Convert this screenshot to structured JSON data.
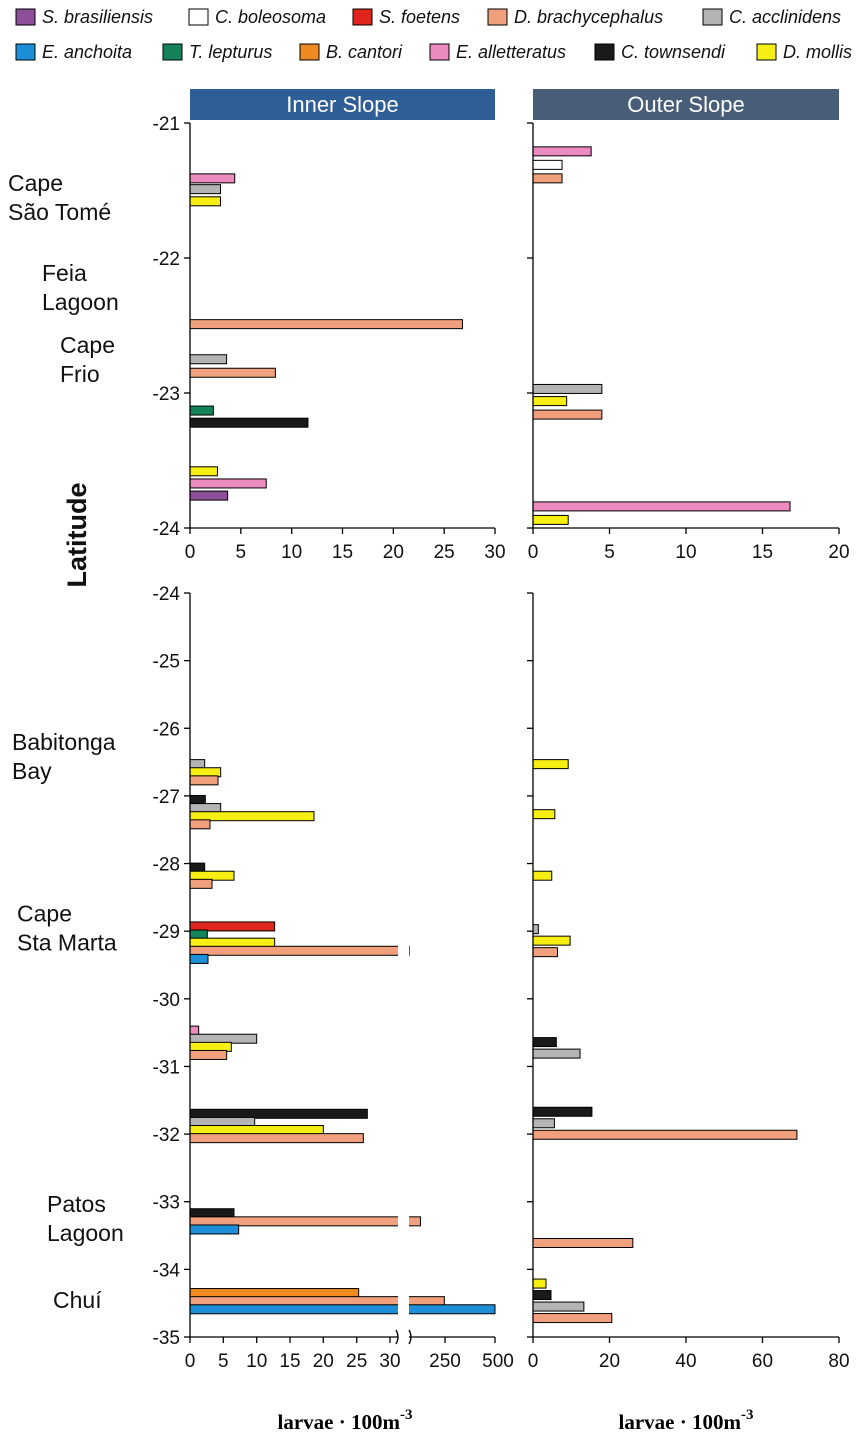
{
  "chart_data": {
    "type": "bar",
    "orientation": "horizontal",
    "ylabel": "Latitude",
    "species": [
      {
        "key": "sbra",
        "name": "S. brasiliensis",
        "color": "#8c4f98"
      },
      {
        "key": "cbol",
        "name": "C. boleosoma",
        "color": "#ffffff"
      },
      {
        "key": "sfoe",
        "name": "S. foetens",
        "color": "#e0261c"
      },
      {
        "key": "dbra",
        "name": "D. brachycephalus",
        "color": "#f0a07c"
      },
      {
        "key": "cacc",
        "name": "C. acclinidens",
        "color": "#b4b4b4"
      },
      {
        "key": "eanc",
        "name": "E. anchoita",
        "color": "#1d8fd8"
      },
      {
        "key": "tlep",
        "name": "T. lepturus",
        "color": "#15835a"
      },
      {
        "key": "bcan",
        "name": "B. cantori",
        "color": "#ee8a1f"
      },
      {
        "key": "eall",
        "name": "E. alletteratus",
        "color": "#ec8bbd"
      },
      {
        "key": "ctow",
        "name": "C. townsendi",
        "color": "#1a1a1a"
      },
      {
        "key": "dmol",
        "name": "D. mollis",
        "color": "#f7ee14"
      }
    ],
    "panels": [
      {
        "id": "top-inner",
        "title": "Inner Slope",
        "ylim": [
          -24,
          -21
        ],
        "yticks": [
          -21,
          -22,
          -23,
          -24
        ],
        "ytick_labels": [
          "-21",
          "-22",
          "-23",
          "-24"
        ],
        "xlim": [
          0,
          30
        ],
        "xticks": [
          0,
          5,
          10,
          15,
          20,
          25,
          30
        ],
        "xtick_labels": [
          "0",
          "5",
          "10",
          "15",
          "20",
          "25",
          "30"
        ],
        "bars": [
          {
            "species": "eall",
            "lat": -21.41,
            "value": 4.4
          },
          {
            "species": "cacc",
            "lat": -21.49,
            "value": 3.0
          },
          {
            "species": "dmol",
            "lat": -21.58,
            "value": 3.0
          },
          {
            "species": "dbra",
            "lat": -22.49,
            "value": 26.8
          },
          {
            "species": "cacc",
            "lat": -22.75,
            "value": 3.6
          },
          {
            "species": "dbra",
            "lat": -22.85,
            "value": 8.4
          },
          {
            "species": "tlep",
            "lat": -23.13,
            "value": 2.3
          },
          {
            "species": "ctow",
            "lat": -23.22,
            "value": 11.6
          },
          {
            "species": "dmol",
            "lat": -23.58,
            "value": 2.7
          },
          {
            "species": "eall",
            "lat": -23.67,
            "value": 7.5
          },
          {
            "species": "sbra",
            "lat": -23.76,
            "value": 3.7
          }
        ]
      },
      {
        "id": "top-outer",
        "title": "Outer Slope",
        "ylim": [
          -24,
          -21
        ],
        "yticks": [
          -21,
          -22,
          -23,
          -24
        ],
        "ytick_labels": [],
        "xlim": [
          0,
          20
        ],
        "xticks": [
          0,
          5,
          10,
          15,
          20
        ],
        "xtick_labels": [
          "0",
          "5",
          "10",
          "15",
          "20"
        ],
        "bars": [
          {
            "species": "eall",
            "lat": -21.21,
            "value": 3.8
          },
          {
            "species": "cbol",
            "lat": -21.31,
            "value": 1.9
          },
          {
            "species": "dbra",
            "lat": -21.41,
            "value": 1.9
          },
          {
            "species": "cacc",
            "lat": -22.97,
            "value": 4.5
          },
          {
            "species": "dmol",
            "lat": -23.06,
            "value": 2.2
          },
          {
            "species": "dbra",
            "lat": -23.16,
            "value": 4.5
          },
          {
            "species": "eall",
            "lat": -23.84,
            "value": 16.8
          },
          {
            "species": "dmol",
            "lat": -23.94,
            "value": 2.3
          }
        ]
      },
      {
        "id": "bottom-inner",
        "title": "",
        "ylim": [
          -35,
          -24
        ],
        "yticks": [
          -24,
          -25,
          -26,
          -27,
          -28,
          -29,
          -30,
          -31,
          -32,
          -33,
          -34,
          -35
        ],
        "ytick_labels": [
          "-24",
          "-25",
          "-26",
          "-27",
          "-28",
          "-29",
          "-30",
          "-31",
          "-32",
          "-33",
          "-34",
          "-35"
        ],
        "xlim": [
          0,
          500
        ],
        "xaxis_break": true,
        "xtick_labels": [
          "0",
          "5",
          "10",
          "15",
          "20",
          "25",
          "30",
          "250",
          "500"
        ],
        "bars": [
          {
            "species": "cacc",
            "lat": -26.53,
            "value": 2.2
          },
          {
            "species": "dmol",
            "lat": -26.65,
            "value": 4.6
          },
          {
            "species": "dbra",
            "lat": -26.77,
            "value": 4.2
          },
          {
            "species": "ctow",
            "lat": -27.06,
            "value": 2.3
          },
          {
            "species": "cacc",
            "lat": -27.18,
            "value": 4.6
          },
          {
            "species": "dmol",
            "lat": -27.3,
            "value": 18.6
          },
          {
            "species": "dbra",
            "lat": -27.42,
            "value": 3.0
          },
          {
            "species": "ctow",
            "lat": -28.06,
            "value": 2.2
          },
          {
            "species": "dmol",
            "lat": -28.18,
            "value": 6.6
          },
          {
            "species": "dbra",
            "lat": -28.3,
            "value": 3.3
          },
          {
            "species": "sfoe",
            "lat": -28.93,
            "value": 12.7
          },
          {
            "species": "tlep",
            "lat": -29.05,
            "value": 2.6
          },
          {
            "species": "dmol",
            "lat": -29.17,
            "value": 12.7
          },
          {
            "species": "dbra",
            "lat": -29.29,
            "value": 30.8
          },
          {
            "species": "eanc",
            "lat": -29.41,
            "value": 2.7
          },
          {
            "species": "eall",
            "lat": -30.47,
            "value": 1.3
          },
          {
            "species": "cacc",
            "lat": -30.59,
            "value": 10.0
          },
          {
            "species": "dmol",
            "lat": -30.71,
            "value": 6.2
          },
          {
            "species": "dbra",
            "lat": -30.83,
            "value": 5.5
          },
          {
            "species": "ctow",
            "lat": -31.7,
            "value": 26.6
          },
          {
            "species": "cacc",
            "lat": -31.82,
            "value": 9.7
          },
          {
            "species": "dmol",
            "lat": -31.94,
            "value": 20.0
          },
          {
            "species": "dbra",
            "lat": -32.06,
            "value": 26.0
          },
          {
            "species": "ctow",
            "lat": -33.17,
            "value": 6.6
          },
          {
            "species": "dbra",
            "lat": -33.29,
            "value": 100
          },
          {
            "species": "eanc",
            "lat": -33.41,
            "value": 7.3
          },
          {
            "species": "bcan",
            "lat": -34.35,
            "value": 25.3
          },
          {
            "species": "dbra",
            "lat": -34.47,
            "value": 246
          },
          {
            "species": "eanc",
            "lat": -34.59,
            "value": 500
          }
        ]
      },
      {
        "id": "bottom-outer",
        "title": "",
        "ylim": [
          -35,
          -24
        ],
        "yticks": [
          -24,
          -25,
          -26,
          -27,
          -28,
          -29,
          -30,
          -31,
          -32,
          -33,
          -34,
          -35
        ],
        "ytick_labels": [],
        "xlim": [
          0,
          80
        ],
        "xticks": [
          0,
          20,
          40,
          60,
          80
        ],
        "xtick_labels": [
          "0",
          "20",
          "40",
          "60",
          "80"
        ],
        "bars": [
          {
            "species": "dmol",
            "lat": -26.53,
            "value": 9.2
          },
          {
            "species": "dmol",
            "lat": -27.27,
            "value": 5.7
          },
          {
            "species": "dmol",
            "lat": -28.18,
            "value": 4.9
          },
          {
            "species": "cacc",
            "lat": -28.97,
            "value": 1.4
          },
          {
            "species": "dmol",
            "lat": -29.14,
            "value": 9.7
          },
          {
            "species": "dbra",
            "lat": -29.31,
            "value": 6.4
          },
          {
            "species": "ctow",
            "lat": -30.64,
            "value": 6.1
          },
          {
            "species": "cacc",
            "lat": -30.81,
            "value": 12.3
          },
          {
            "species": "ctow",
            "lat": -31.67,
            "value": 15.4
          },
          {
            "species": "cacc",
            "lat": -31.84,
            "value": 5.6
          },
          {
            "species": "dbra",
            "lat": -32.01,
            "value": 69.0
          },
          {
            "species": "dbra",
            "lat": -33.61,
            "value": 26.1
          },
          {
            "species": "dmol",
            "lat": -34.21,
            "value": 3.4
          },
          {
            "species": "ctow",
            "lat": -34.38,
            "value": 4.7
          },
          {
            "species": "cacc",
            "lat": -34.55,
            "value": 13.3
          },
          {
            "species": "dbra",
            "lat": -34.72,
            "value": 20.6
          }
        ]
      }
    ],
    "locations_top": [
      {
        "lines": [
          "Cape",
          "São Tomé"
        ],
        "lat": -21.55
      },
      {
        "lines": [
          "Feia",
          "Lagoon"
        ],
        "lat": -22.22
      },
      {
        "lines": [
          "Cape",
          "Frio"
        ],
        "lat": -22.75
      }
    ],
    "locations_bottom": [
      {
        "lines": [
          "Babitonga",
          "Bay"
        ],
        "lat": -26.42
      },
      {
        "lines": [
          "Cape",
          "Sta Marta"
        ],
        "lat": -28.95
      },
      {
        "lines": [
          "Patos",
          "Lagoon"
        ],
        "lat": -33.25
      },
      {
        "lines": [
          "Chuí"
        ],
        "lat": -34.45
      }
    ],
    "xlabel_main": "larvae · 100m",
    "xlabel_exponent": "-3"
  }
}
